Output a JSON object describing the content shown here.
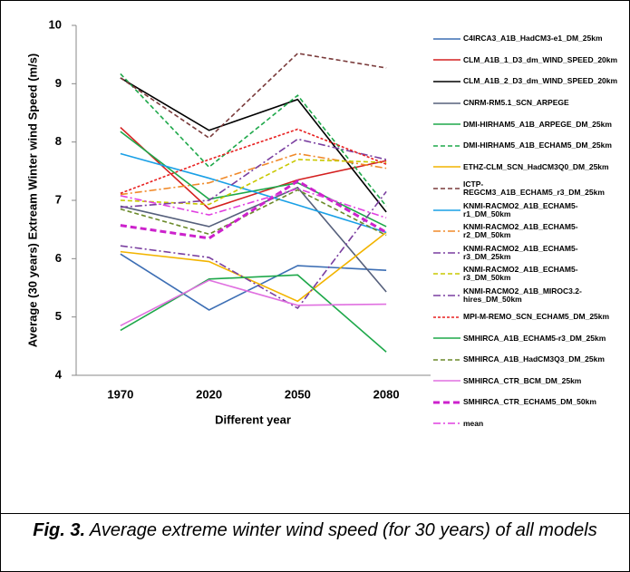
{
  "chart_data": {
    "type": "line",
    "ylabel": "Average (30 years) Extream Winter wind Speed (m/s)",
    "xlabel": "Different year",
    "categories": [
      "1970",
      "2020",
      "2050",
      "2080"
    ],
    "ylim": [
      4,
      10
    ],
    "yticks": [
      4,
      5,
      6,
      7,
      8,
      9,
      10
    ],
    "series": [
      {
        "name": "C4IRCA3_A1B_HadCM3-e1_DM_25km",
        "color": "#3c6eb4",
        "dash": "solid",
        "values": [
          6.08,
          5.12,
          5.88,
          5.8
        ]
      },
      {
        "name": "CLM_A1B_1_D3_dm_WIND_SPEED_20km",
        "color": "#d42020",
        "dash": "solid",
        "values": [
          8.25,
          6.85,
          7.35,
          7.68
        ]
      },
      {
        "name": "CLM_A1B_2_D3_dm_WIND_SPEED_20km",
        "color": "#000000",
        "dash": "solid",
        "values": [
          9.1,
          8.2,
          8.73,
          6.8
        ]
      },
      {
        "name": "CNRM-RM5.1_SCN_ARPEGE",
        "color": "#56607c",
        "dash": "solid",
        "values": [
          6.9,
          6.55,
          7.22,
          5.43
        ]
      },
      {
        "name": "DMI-HIRHAM5_A1B_ARPEGE_DM_25km",
        "color": "#1ea84a",
        "dash": "solid",
        "values": [
          8.18,
          7.02,
          7.3,
          6.55
        ]
      },
      {
        "name": "DMI-HIRHAM5_A1B_ECHAM5_DM_25km",
        "color": "#1ea84a",
        "dash": "dashed",
        "values": [
          9.17,
          7.57,
          8.8,
          6.9
        ]
      },
      {
        "name": "ETHZ-CLM_SCN_HadCM3Q0_DM_25km",
        "color": "#f2b400",
        "dash": "solid",
        "values": [
          6.12,
          5.95,
          5.27,
          6.45
        ]
      },
      {
        "name": "ICTP-REGCM3_A1B_ECHAM5_r3_DM_25km",
        "color": "#7a3b3b",
        "dash": "dashed",
        "values": [
          9.1,
          8.07,
          9.52,
          9.27
        ]
      },
      {
        "name": "KNMI-RACMO2_A1B_ECHAM5-r1_DM_50km",
        "color": "#1aa0e6",
        "dash": "solid",
        "values": [
          7.8,
          7.38,
          6.92,
          6.45
        ]
      },
      {
        "name": "KNMI-RACMO2_A1B_ECHAM5-r2_DM_50km",
        "color": "#f08a2a",
        "dash": "dashdot",
        "values": [
          7.1,
          7.3,
          7.8,
          7.55
        ]
      },
      {
        "name": "KNMI-RACMO2_A1B_ECHAM5-r3_DM_25km",
        "color": "#7a3fa0",
        "dash": "dashdot",
        "values": [
          6.22,
          6.02,
          5.15,
          7.15
        ]
      },
      {
        "name": "KNMI-RACMO2_A1B_ECHAM5-r3_DM_50km",
        "color": "#c8c800",
        "dash": "dashed",
        "values": [
          7.0,
          6.93,
          7.7,
          7.65
        ]
      },
      {
        "name": "KNMI-RACMO2_A1B_MIROC3.2-hires_DM_50km",
        "color": "#7a3fa0",
        "dash": "dashdot",
        "values": [
          6.88,
          7.0,
          8.05,
          7.7
        ]
      },
      {
        "name": "MPI-M-REMO_SCN_ECHAM5_DM_25km",
        "color": "#e82020",
        "dash": "dotted",
        "values": [
          7.12,
          7.7,
          8.22,
          7.62
        ]
      },
      {
        "name": "SMHIRCA_A1B_ECHAM5-r3_DM_25km",
        "color": "#1ea84a",
        "dash": "solid",
        "values": [
          4.77,
          5.65,
          5.72,
          4.4
        ]
      },
      {
        "name": "SMHIRCA_A1B_HadCM3Q3_DM_25km",
        "color": "#6b8a2a",
        "dash": "dashed",
        "values": [
          6.85,
          6.42,
          7.18,
          6.4
        ]
      },
      {
        "name": "SMHIRCA_CTR_BCM_DM_25km",
        "color": "#e070e0",
        "dash": "solid",
        "values": [
          4.85,
          5.63,
          5.2,
          5.22
        ]
      },
      {
        "name": "SMHIRCA_CTR_ECHAM5_DM_50km",
        "color": "#cc22cc",
        "dash": "thickdashed",
        "values": [
          6.57,
          6.35,
          7.33,
          6.45
        ]
      },
      {
        "name": "mean",
        "color": "#e040e0",
        "dash": "dashdot",
        "values": [
          7.08,
          6.75,
          7.2,
          6.7
        ]
      }
    ]
  },
  "caption": {
    "label": "Fig. 3.",
    "text": "Average extreme winter wind speed (for 30 years) of all models"
  }
}
